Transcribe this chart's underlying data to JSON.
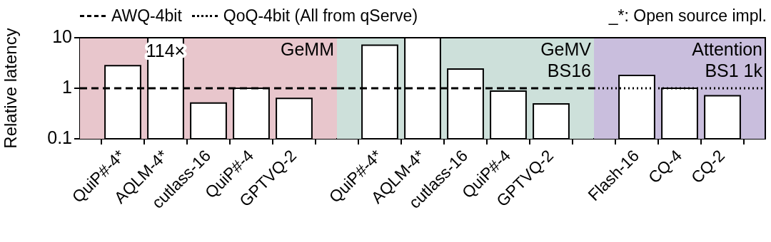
{
  "chart_data": [
    {
      "type": "bar",
      "ylabel": "Relative latency",
      "categories": [
        "QuiP#-4*",
        "AQLM-4*",
        "cutlass-16",
        "QuiP#-4",
        "GPTVQ-2"
      ],
      "values": [
        2.8,
        10,
        0.51,
        1.0,
        0.63
      ],
      "color": "#ffffff",
      "log": "y",
      "ylim": [
        0.1,
        10
      ],
      "yticks": [
        0.1,
        1,
        10
      ],
      "legend": "top",
      "bands": [
        {
          "axis": "x",
          "from": "QuiP#-4*",
          "to": "GPTVQ-2",
          "label": "GeMM",
          "color": "#e8c6cc"
        }
      ],
      "ref_lines": [
        {
          "axis": "y",
          "value": 1,
          "label": "AWQ-4bit",
          "line_style": "dashed",
          "color": "#000000"
        }
      ],
      "annotations": [
        "114×"
      ]
    },
    {
      "type": "bar",
      "categories": [
        "QuiP#-4*",
        "AQLM-4*",
        "cutlass-16",
        "QuiP#-4",
        "GPTVQ-2"
      ],
      "values": [
        7.1,
        10,
        2.4,
        0.88,
        0.49
      ],
      "color": "#ffffff",
      "log": "y",
      "ylim": [
        0.1,
        10
      ],
      "yticks": [
        0.1,
        1,
        10
      ],
      "tick_labels": "x",
      "bands": [
        {
          "axis": "x",
          "from": "QuiP#-4*",
          "to": "GPTVQ-2",
          "label": "GeMV\nBS16",
          "color": "#cde0da"
        }
      ],
      "ref_lines": [
        {
          "axis": "y",
          "value": 1,
          "line_style": "dashed",
          "color": "#000000"
        }
      ]
    },
    {
      "type": "bar",
      "categories": [
        "Flash-16",
        "CQ-4",
        "CQ-2"
      ],
      "values": [
        1.8,
        1.0,
        0.71
      ],
      "color": "#ffffff",
      "log": "y",
      "ylim": [
        0.1,
        10
      ],
      "yticks": [
        0.1,
        1,
        10
      ],
      "tick_labels": "x",
      "bands": [
        {
          "axis": "x",
          "from": "Flash-16",
          "to": "CQ-2",
          "label": "Attention\nBS1 1k",
          "color": "#c9bedd"
        }
      ],
      "ref_lines": [
        {
          "axis": "y",
          "value": 1,
          "label": "QoQ-4bit (All from qServe)",
          "line_style": "dotted",
          "color": "#000000"
        }
      ],
      "annotations": [
        "_*: Open source impl."
      ]
    }
  ]
}
